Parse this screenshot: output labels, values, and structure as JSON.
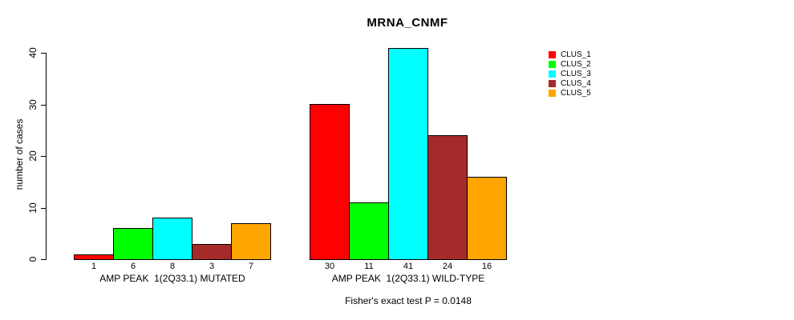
{
  "background_color": "#ffffff",
  "text_color": "#000000",
  "chart_data": {
    "type": "bar",
    "title": "MRNA_CNMF",
    "ylabel": "number of cases",
    "ylim": [
      0,
      40
    ],
    "yticks": [
      0,
      10,
      20,
      30,
      40
    ],
    "grid": false,
    "legend_position": "right-top-outside",
    "series": [
      "CLUS_1",
      "CLUS_2",
      "CLUS_3",
      "CLUS_4",
      "CLUS_5"
    ],
    "colors": [
      "#FF0000",
      "#00FF00",
      "#00FFFF",
      "#A52A2A",
      "#FFA500"
    ],
    "groups": [
      {
        "label": "AMP PEAK  1(2Q33.1) MUTATED",
        "values": [
          1,
          6,
          8,
          3,
          7
        ]
      },
      {
        "label": "AMP PEAK  1(2Q33.1) WILD-TYPE",
        "values": [
          30,
          11,
          41,
          24,
          16
        ]
      }
    ],
    "bar_value_labels": [
      [
        1,
        6,
        8,
        3,
        7
      ],
      [
        30,
        11,
        41,
        24,
        16
      ]
    ],
    "annotation": "Fisher's exact test P = 0.0148"
  }
}
